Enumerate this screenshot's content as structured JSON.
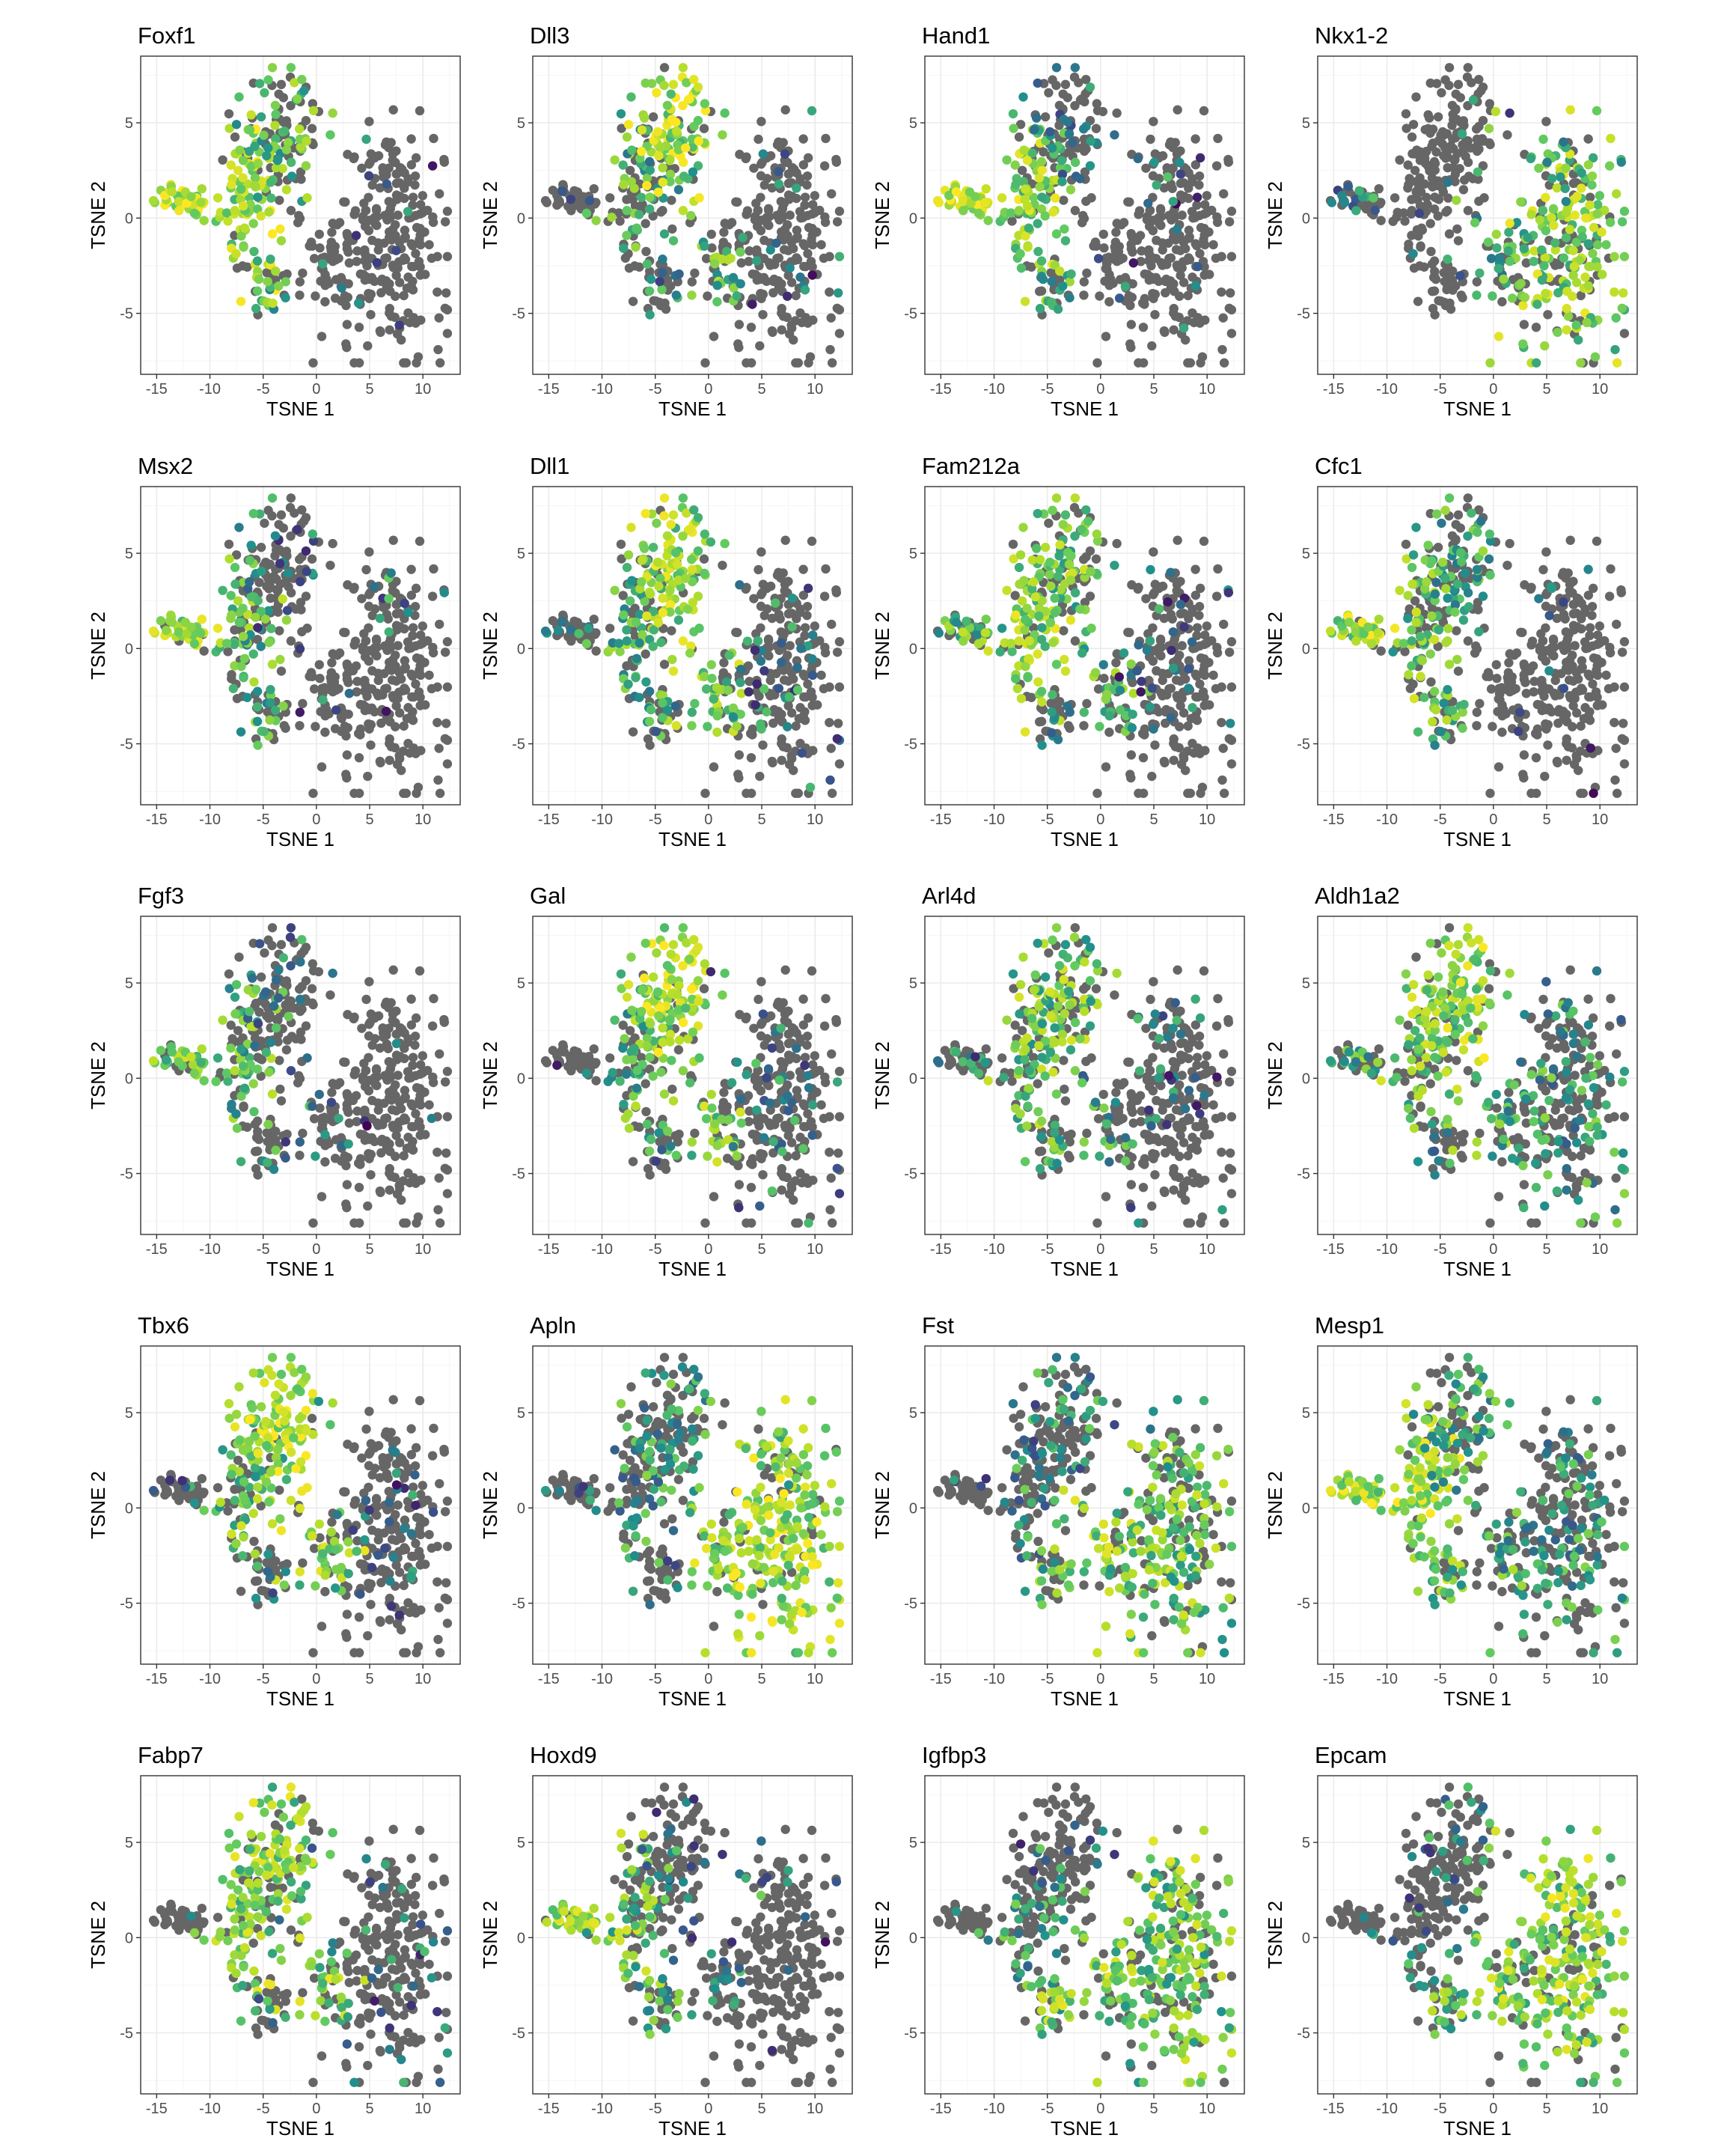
{
  "chart_data": {
    "type": "scatter",
    "layout": "facet-grid 5x4",
    "xlabel": "TSNE 1",
    "ylabel": "TSNE 2",
    "xlim": [
      -16.5,
      13.5
    ],
    "ylim": [
      -8.2,
      8.5
    ],
    "x_ticks": [
      -15,
      -10,
      -5,
      0,
      5,
      10
    ],
    "y_ticks": [
      -5,
      0,
      5
    ],
    "grid": true,
    "point_colors": {
      "not_expressed": "#666666",
      "expression_scale": [
        "#440154",
        "#3b528b",
        "#21908c",
        "#5ec962",
        "#b5de2b",
        "#fde725"
      ]
    },
    "panels": [
      {
        "title": "Foxf1"
      },
      {
        "title": "Dll3"
      },
      {
        "title": "Hand1"
      },
      {
        "title": "Nkx1-2"
      },
      {
        "title": "Msx2"
      },
      {
        "title": "Dll1"
      },
      {
        "title": "Fam212a"
      },
      {
        "title": "Cfc1"
      },
      {
        "title": "Fgf3"
      },
      {
        "title": "Gal"
      },
      {
        "title": "Arl4d"
      },
      {
        "title": "Aldh1a2"
      },
      {
        "title": "Tbx6"
      },
      {
        "title": "Apln"
      },
      {
        "title": "Fst"
      },
      {
        "title": "Mesp1"
      },
      {
        "title": "Fabp7"
      },
      {
        "title": "Hoxd9"
      },
      {
        "title": "Igfbp3"
      },
      {
        "title": "Epcam"
      }
    ]
  }
}
